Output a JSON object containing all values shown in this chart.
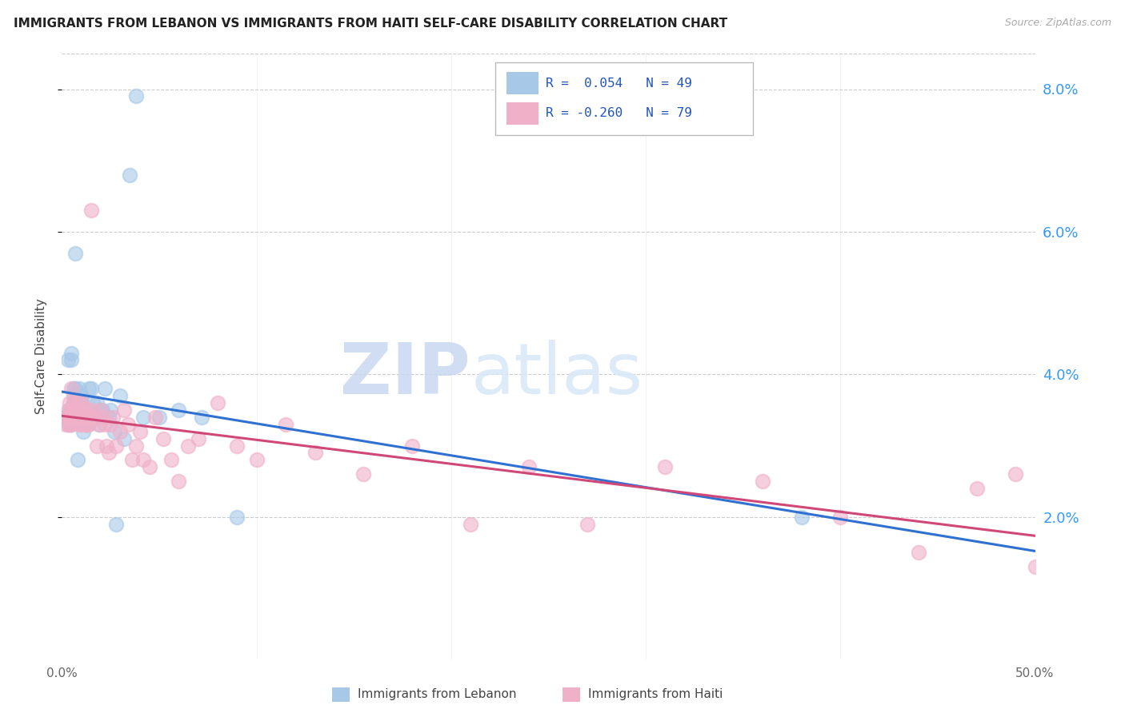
{
  "title": "IMMIGRANTS FROM LEBANON VS IMMIGRANTS FROM HAITI SELF-CARE DISABILITY CORRELATION CHART",
  "source": "Source: ZipAtlas.com",
  "ylabel": "Self-Care Disability",
  "xmin": 0.0,
  "xmax": 0.5,
  "ymin": 0.0,
  "ymax": 0.085,
  "yticks": [
    0.02,
    0.04,
    0.06,
    0.08
  ],
  "ytick_labels": [
    "2.0%",
    "4.0%",
    "6.0%",
    "8.0%"
  ],
  "legend_lb_r": "0.054",
  "legend_lb_n": "49",
  "legend_ht_r": "-0.260",
  "legend_ht_n": "79",
  "lb_color": "#a8c8e8",
  "ht_color": "#f0b0c8",
  "lb_line_color": "#3070d0",
  "ht_line_color": "#d04878",
  "watermark_zip": "ZIP",
  "watermark_atlas": "atlas",
  "lebanon_x": [
    0.002,
    0.003,
    0.003,
    0.004,
    0.004,
    0.004,
    0.005,
    0.005,
    0.005,
    0.005,
    0.005,
    0.006,
    0.006,
    0.006,
    0.006,
    0.007,
    0.007,
    0.008,
    0.008,
    0.009,
    0.009,
    0.01,
    0.01,
    0.011,
    0.012,
    0.013,
    0.014,
    0.015,
    0.016,
    0.017,
    0.018,
    0.019,
    0.02,
    0.021,
    0.022,
    0.024,
    0.025,
    0.027,
    0.028,
    0.03,
    0.032,
    0.035,
    0.038,
    0.042,
    0.05,
    0.06,
    0.072,
    0.09,
    0.38
  ],
  "lebanon_y": [
    0.034,
    0.042,
    0.034,
    0.033,
    0.035,
    0.034,
    0.035,
    0.034,
    0.033,
    0.043,
    0.042,
    0.036,
    0.037,
    0.036,
    0.038,
    0.057,
    0.038,
    0.036,
    0.028,
    0.038,
    0.035,
    0.036,
    0.037,
    0.032,
    0.033,
    0.033,
    0.038,
    0.038,
    0.036,
    0.034,
    0.036,
    0.033,
    0.035,
    0.035,
    0.038,
    0.034,
    0.035,
    0.032,
    0.019,
    0.037,
    0.031,
    0.068,
    0.079,
    0.034,
    0.034,
    0.035,
    0.034,
    0.02,
    0.02
  ],
  "haiti_x": [
    0.002,
    0.002,
    0.003,
    0.003,
    0.003,
    0.004,
    0.004,
    0.004,
    0.005,
    0.005,
    0.005,
    0.005,
    0.005,
    0.006,
    0.006,
    0.006,
    0.007,
    0.007,
    0.007,
    0.008,
    0.008,
    0.009,
    0.009,
    0.009,
    0.01,
    0.01,
    0.01,
    0.011,
    0.012,
    0.012,
    0.013,
    0.013,
    0.014,
    0.014,
    0.015,
    0.015,
    0.016,
    0.017,
    0.018,
    0.019,
    0.02,
    0.021,
    0.022,
    0.023,
    0.024,
    0.025,
    0.026,
    0.028,
    0.03,
    0.032,
    0.034,
    0.036,
    0.038,
    0.04,
    0.042,
    0.045,
    0.048,
    0.052,
    0.056,
    0.06,
    0.065,
    0.07,
    0.08,
    0.09,
    0.1,
    0.115,
    0.13,
    0.155,
    0.18,
    0.21,
    0.24,
    0.27,
    0.31,
    0.36,
    0.4,
    0.44,
    0.47,
    0.49,
    0.5
  ],
  "haiti_y": [
    0.034,
    0.033,
    0.035,
    0.034,
    0.033,
    0.036,
    0.034,
    0.033,
    0.035,
    0.034,
    0.033,
    0.038,
    0.034,
    0.036,
    0.035,
    0.034,
    0.036,
    0.035,
    0.034,
    0.035,
    0.034,
    0.033,
    0.036,
    0.035,
    0.034,
    0.033,
    0.036,
    0.035,
    0.033,
    0.034,
    0.033,
    0.035,
    0.034,
    0.033,
    0.063,
    0.034,
    0.035,
    0.034,
    0.03,
    0.033,
    0.035,
    0.034,
    0.033,
    0.03,
    0.029,
    0.033,
    0.034,
    0.03,
    0.032,
    0.035,
    0.033,
    0.028,
    0.03,
    0.032,
    0.028,
    0.027,
    0.034,
    0.031,
    0.028,
    0.025,
    0.03,
    0.031,
    0.036,
    0.03,
    0.028,
    0.033,
    0.029,
    0.026,
    0.03,
    0.019,
    0.027,
    0.019,
    0.027,
    0.025,
    0.02,
    0.015,
    0.024,
    0.026,
    0.013
  ]
}
